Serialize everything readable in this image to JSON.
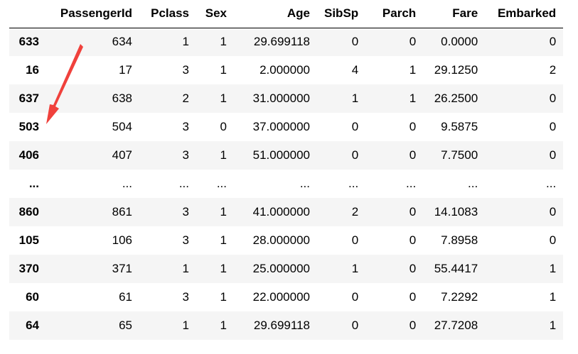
{
  "table": {
    "columns": [
      "PassengerId",
      "Pclass",
      "Sex",
      "Age",
      "SibSp",
      "Parch",
      "Fare",
      "Embarked"
    ],
    "rows": [
      {
        "index": "633",
        "cells": [
          "634",
          "1",
          "1",
          "29.699118",
          "0",
          "0",
          "0.0000",
          "0"
        ]
      },
      {
        "index": "16",
        "cells": [
          "17",
          "3",
          "1",
          "2.000000",
          "4",
          "1",
          "29.1250",
          "2"
        ]
      },
      {
        "index": "637",
        "cells": [
          "638",
          "2",
          "1",
          "31.000000",
          "1",
          "1",
          "26.2500",
          "0"
        ]
      },
      {
        "index": "503",
        "cells": [
          "504",
          "3",
          "0",
          "37.000000",
          "0",
          "0",
          "9.5875",
          "0"
        ]
      },
      {
        "index": "406",
        "cells": [
          "407",
          "3",
          "1",
          "51.000000",
          "0",
          "0",
          "7.7500",
          "0"
        ]
      },
      {
        "index": "...",
        "cells": [
          "...",
          "...",
          "...",
          "...",
          "...",
          "...",
          "...",
          "..."
        ]
      },
      {
        "index": "860",
        "cells": [
          "861",
          "3",
          "1",
          "41.000000",
          "2",
          "0",
          "14.1083",
          "0"
        ]
      },
      {
        "index": "105",
        "cells": [
          "106",
          "3",
          "1",
          "28.000000",
          "0",
          "0",
          "7.8958",
          "0"
        ]
      },
      {
        "index": "370",
        "cells": [
          "371",
          "1",
          "1",
          "25.000000",
          "1",
          "0",
          "55.4417",
          "1"
        ]
      },
      {
        "index": "60",
        "cells": [
          "61",
          "3",
          "1",
          "22.000000",
          "0",
          "0",
          "7.2292",
          "1"
        ]
      },
      {
        "index": "64",
        "cells": [
          "65",
          "1",
          "1",
          "29.699118",
          "0",
          "0",
          "27.7208",
          "1"
        ]
      }
    ]
  },
  "annotation": {
    "arrow_color": "#f0413c"
  }
}
